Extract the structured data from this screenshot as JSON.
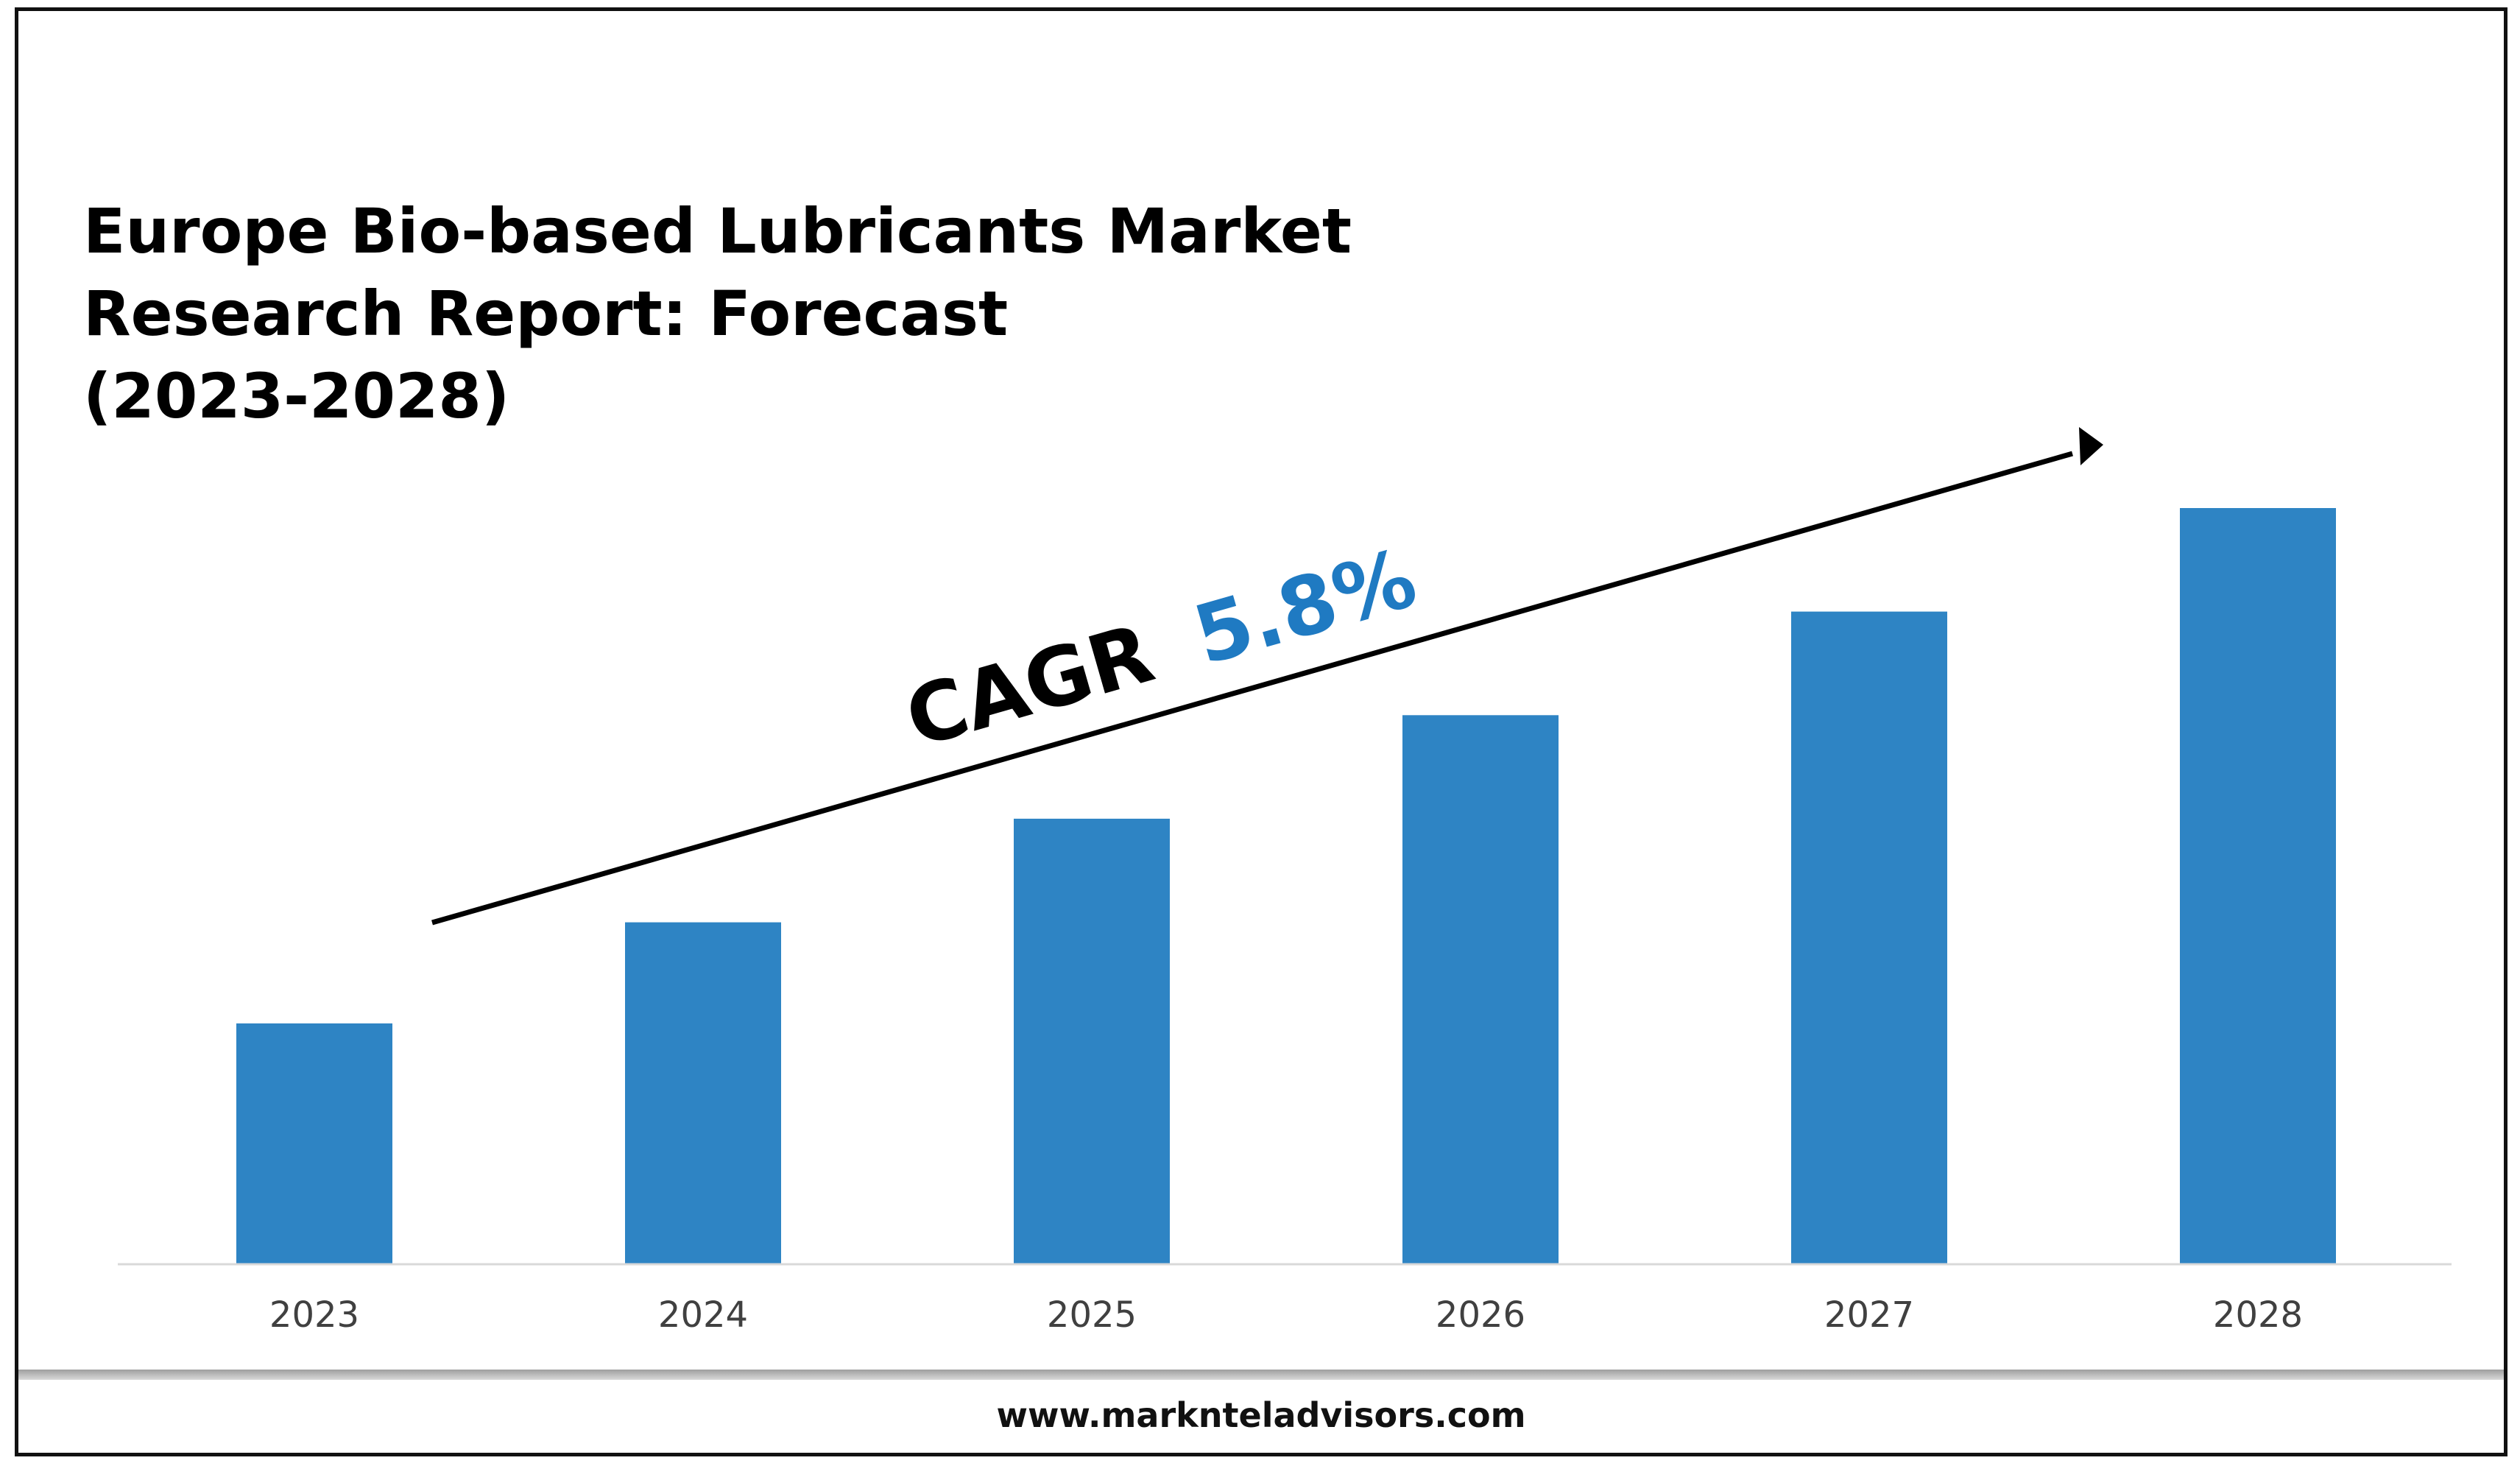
{
  "chart_data": {
    "type": "bar",
    "title": [
      "Europe Bio-based Lubricants Market",
      "Research Report: Forecast",
      "(2023-2028)"
    ],
    "categories": [
      "2023",
      "2024",
      "2025",
      "2026",
      "2027",
      "2028"
    ],
    "values": [
      1.0,
      1.42,
      1.85,
      2.28,
      2.71,
      3.14
    ],
    "ylim": [
      0,
      3.14
    ],
    "grid": false,
    "annotation": {
      "label": "CAGR",
      "value": "5.8%"
    }
  },
  "colors": {
    "bar": "#2e84c4",
    "cagr_value": "#1f7ac2",
    "arrow": "#000000",
    "axis": "#d9d9d9"
  },
  "footer": {
    "website": "www.marknteladvisors.com"
  }
}
